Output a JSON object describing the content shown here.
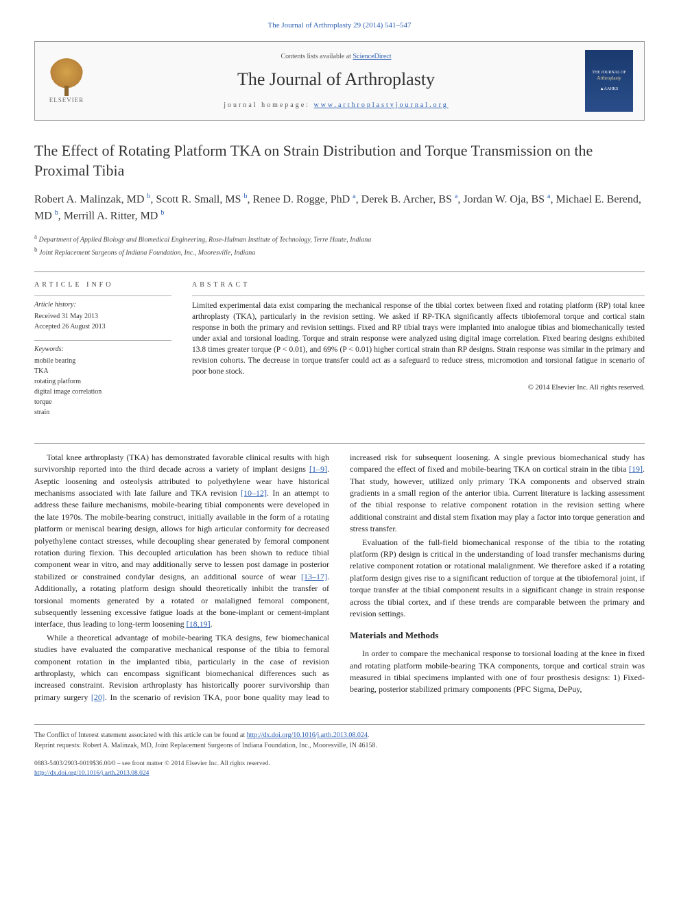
{
  "citation": "The Journal of Arthroplasty 29 (2014) 541–547",
  "header": {
    "elsevier_label": "ELSEVIER",
    "contents_prefix": "Contents lists available at ",
    "contents_link": "ScienceDirect",
    "journal_name": "The Journal of Arthroplasty",
    "homepage_prefix": "journal homepage: ",
    "homepage_link": "www.arthroplastyjournal.org",
    "cover_top": "THE JOURNAL OF",
    "cover_title": "Arthroplasty",
    "cover_sub": "▲AAHKS"
  },
  "title": "The Effect of Rotating Platform TKA on Strain Distribution and Torque Transmission on the Proximal Tibia",
  "authors_html": "Robert A. Malinzak, MD <sup>b</sup>, Scott R. Small, MS <sup>b</sup>, Renee D. Rogge, PhD <sup>a</sup>, Derek B. Archer, BS <sup>a</sup>, Jordan W. Oja, BS <sup>a</sup>, Michael E. Berend, MD <sup>b</sup>, Merrill A. Ritter, MD <sup>b</sup>",
  "affiliations": {
    "a": "Department of Applied Biology and Biomedical Engineering, Rose-Hulman Institute of Technology, Terre Haute, Indiana",
    "b": "Joint Replacement Surgeons of Indiana Foundation, Inc., Mooresville, Indiana"
  },
  "article_info": {
    "heading": "ARTICLE INFO",
    "history_label": "Article history:",
    "received": "Received 31 May 2013",
    "accepted": "Accepted 26 August 2013",
    "keywords_label": "Keywords:",
    "keywords": [
      "mobile bearing",
      "TKA",
      "rotating platform",
      "digital image correlation",
      "torque",
      "strain"
    ]
  },
  "abstract": {
    "heading": "ABSTRACT",
    "text": "Limited experimental data exist comparing the mechanical response of the tibial cortex between fixed and rotating platform (RP) total knee arthroplasty (TKA), particularly in the revision setting. We asked if RP-TKA significantly affects tibiofemoral torque and cortical stain response in both the primary and revision settings. Fixed and RP tibial trays were implanted into analogue tibias and biomechanically tested under axial and torsional loading. Torque and strain response were analyzed using digital image correlation. Fixed bearing designs exhibited 13.8 times greater torque (P < 0.01), and 69% (P < 0.01) higher cortical strain than RP designs. Strain response was similar in the primary and revision cohorts. The decrease in torque transfer could act as a safeguard to reduce stress, micromotion and torsional fatigue in scenario of poor bone stock.",
    "copyright": "© 2014 Elsevier Inc. All rights reserved."
  },
  "body": {
    "p1": "Total knee arthroplasty (TKA) has demonstrated favorable clinical results with high survivorship reported into the third decade across a variety of implant designs [1–9]. Aseptic loosening and osteolysis attributed to polyethylene wear have historical mechanisms associated with late failure and TKA revision [10–12]. In an attempt to address these failure mechanisms, mobile-bearing tibial components were developed in the late 1970s. The mobile-bearing construct, initially available in the form of a rotating platform or meniscal bearing design, allows for high articular conformity for decreased polyethylene contact stresses, while decoupling shear generated by femoral component rotation during flexion. This decoupled articulation has been shown to reduce tibial component wear in vitro, and may additionally serve to lessen post damage in posterior stabilized or constrained condylar designs, an additional source of wear [13–17]. Additionally, a rotating platform design should theoretically inhibit the transfer of torsional moments generated by a rotated or malaligned femoral component, subsequently lessening excessive fatigue loads at the bone-implant or cement-implant interface, thus leading to long-term loosening [18,19].",
    "p2": "While a theoretical advantage of mobile-bearing TKA designs, few biomechanical studies have evaluated the comparative mechanical response of the tibia to femoral component rotation in the implanted tibia, particularly in the case of revision arthroplasty, which can encompass significant biomechanical differences such as increased constraint. Revision arthroplasty has historically poorer survivorship than primary surgery [20]. In the scenario of revision TKA, poor bone quality may lead to increased risk for subsequent loosening. A single previous biomechanical study has compared the effect of fixed and mobile-bearing TKA on cortical strain in the tibia [19]. That study, however, utilized only primary TKA components and observed strain gradients in a small region of the anterior tibia. Current literature is lacking assessment of the tibial response to relative component rotation in the revision setting where additional constraint and distal stem fixation may play a factor into torque generation and stress transfer.",
    "p3": "Evaluation of the full-field biomechanical response of the tibia to the rotating platform (RP) design is critical in the understanding of load transfer mechanisms during relative component rotation or rotational malalignment. We therefore asked if a rotating platform design gives rise to a significant reduction of torque at the tibiofemoral joint, if torque transfer at the tibial component results in a significant change in strain response across the tibial cortex, and if these trends are comparable between the primary and revision settings.",
    "section_heading": "Materials and Methods",
    "p4": "In order to compare the mechanical response to torsional loading at the knee in fixed and rotating platform mobile-bearing TKA components, torque and cortical strain was measured in tibial specimens implanted with one of four prosthesis designs: 1) Fixed-bearing, posterior stabilized primary components (PFC Sigma, DePuy,"
  },
  "refs": {
    "r1_9": "[1–9]",
    "r10_12": "[10–12]",
    "r13_17": "[13–17]",
    "r18_19": "[18,19]",
    "r20": "[20]",
    "r19": "[19]"
  },
  "footer": {
    "conflict": "The Conflict of Interest statement associated with this article can be found at ",
    "conflict_link": "http://dx.doi.org/10.1016/j.arth.2013.08.024",
    "reprint": "Reprint requests: Robert A. Malinzak, MD, Joint Replacement Surgeons of Indiana Foundation, Inc., Mooresville, IN 46158.",
    "issn": "0883-5403/2903-0019$36.00/0 – see front matter © 2014 Elsevier Inc. All rights reserved.",
    "doi_link": "http://dx.doi.org/10.1016/j.arth.2013.08.024"
  },
  "colors": {
    "link": "#2a5db0",
    "text": "#222222",
    "border": "#888888",
    "cover_bg": "#1a3a6e"
  }
}
